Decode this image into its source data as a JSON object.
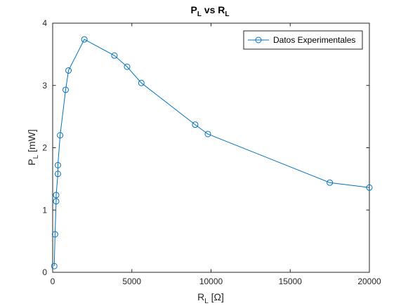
{
  "chart_data": {
    "type": "line",
    "title": {
      "main": "P",
      "sub1": "L",
      "mid": " vs R",
      "sub2": "L"
    },
    "xlabel": {
      "main": "R",
      "sub": "L",
      "units": " [Ω]"
    },
    "ylabel": {
      "main": "P",
      "sub": "L",
      "units": " [mW]"
    },
    "xlim": [
      0,
      20000
    ],
    "ylim": [
      0,
      4
    ],
    "xticks": [
      0,
      5000,
      10000,
      15000,
      20000
    ],
    "yticks": [
      0,
      1,
      2,
      3,
      4
    ],
    "grid": false,
    "legend_position": "top-right",
    "series_color": "#0072BD",
    "series": [
      {
        "name": "Datos Experimentales",
        "marker": "circle",
        "x": [
          100,
          150,
          220,
          220,
          330,
          330,
          470,
          820,
          1000,
          2000,
          3900,
          4700,
          5600,
          9000,
          9800,
          17500,
          20000
        ],
        "y": [
          0.1,
          0.61,
          1.14,
          1.24,
          1.58,
          1.72,
          2.2,
          2.93,
          3.24,
          3.74,
          3.48,
          3.3,
          3.04,
          2.37,
          2.22,
          1.44,
          1.36
        ]
      }
    ]
  }
}
